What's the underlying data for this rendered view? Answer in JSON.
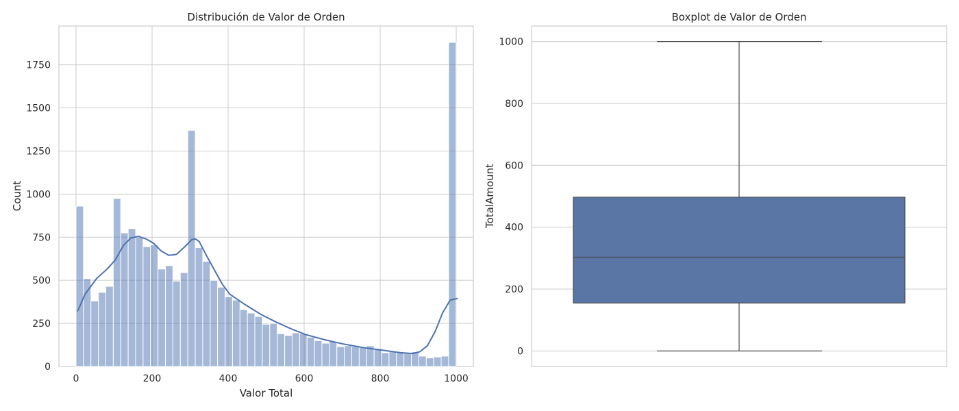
{
  "chart_data": [
    {
      "type": "bar",
      "title": "Distribución de Valor de Orden",
      "xlabel": "Valor Total",
      "ylabel": "Count",
      "xlim": [
        -45,
        1045
      ],
      "ylim": [
        0,
        1975
      ],
      "xticks": [
        0,
        200,
        400,
        600,
        800,
        1000
      ],
      "yticks": [
        0,
        250,
        500,
        750,
        1000,
        1250,
        1500,
        1750
      ],
      "grid": true,
      "bin_width": 20,
      "bin_start": 0,
      "values": [
        930,
        510,
        380,
        430,
        465,
        975,
        775,
        800,
        750,
        695,
        705,
        565,
        585,
        495,
        545,
        1370,
        690,
        610,
        500,
        460,
        405,
        385,
        330,
        310,
        290,
        245,
        250,
        190,
        180,
        195,
        190,
        170,
        150,
        135,
        145,
        115,
        120,
        115,
        110,
        120,
        105,
        80,
        85,
        80,
        75,
        85,
        60,
        50,
        55,
        60,
        1880
      ],
      "kde": {
        "x": [
          0,
          20,
          50,
          80,
          100,
          120,
          140,
          160,
          180,
          200,
          220,
          240,
          260,
          280,
          300,
          310,
          320,
          340,
          360,
          380,
          400,
          440,
          480,
          520,
          560,
          600,
          650,
          700,
          750,
          800,
          850,
          880,
          900,
          920,
          940,
          960,
          980,
          1000
        ],
        "y": [
          320,
          420,
          510,
          570,
          620,
          700,
          745,
          755,
          740,
          715,
          670,
          645,
          650,
          690,
          735,
          740,
          725,
          640,
          560,
          480,
          420,
          360,
          305,
          260,
          220,
          185,
          155,
          130,
          110,
          95,
          80,
          75,
          85,
          120,
          200,
          310,
          385,
          395
        ]
      }
    },
    {
      "type": "box",
      "title": "Boxplot de Valor de Orden",
      "xlabel": "",
      "ylabel": "TotalAmount",
      "ylim": [
        -50,
        1050
      ],
      "yticks": [
        0,
        200,
        400,
        600,
        800,
        1000
      ],
      "grid": true,
      "stats": {
        "whisker_low": 0,
        "q1": 155,
        "median": 303,
        "q3": 497,
        "whisker_high": 1000
      },
      "color": "#5a76a4"
    }
  ]
}
